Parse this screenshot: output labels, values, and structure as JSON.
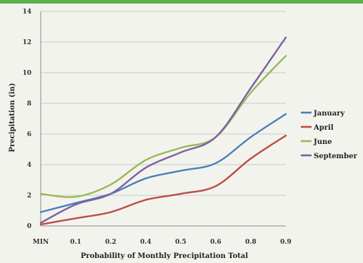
{
  "chart_data": {
    "type": "line",
    "title": "",
    "xlabel": "Probability of Monthly Precipitation  Total",
    "ylabel": "Precipitation (in)",
    "categories": [
      "MIN",
      "0.1",
      "0.2",
      "0.4",
      "0.5",
      "0.6",
      "0.8",
      "0.9"
    ],
    "ylim": [
      0,
      14
    ],
    "yticks": [
      0,
      2,
      4,
      6,
      8,
      10,
      12,
      14
    ],
    "grid": true,
    "legend_position": "right",
    "series": [
      {
        "name": "January",
        "color": "#4a7ebb",
        "values": [
          0.9,
          1.5,
          2.1,
          3.1,
          3.6,
          4.1,
          5.8,
          7.3
        ]
      },
      {
        "name": "April",
        "color": "#be4b48",
        "values": [
          0.1,
          0.5,
          0.9,
          1.7,
          2.1,
          2.6,
          4.4,
          5.9
        ]
      },
      {
        "name": "June",
        "color": "#98b954",
        "values": [
          2.1,
          1.9,
          2.7,
          4.3,
          5.1,
          5.8,
          8.7,
          11.1
        ]
      },
      {
        "name": "September",
        "color": "#7d60a0",
        "values": [
          0.2,
          1.4,
          2.1,
          3.8,
          4.8,
          5.8,
          9.0,
          12.3
        ]
      }
    ]
  }
}
